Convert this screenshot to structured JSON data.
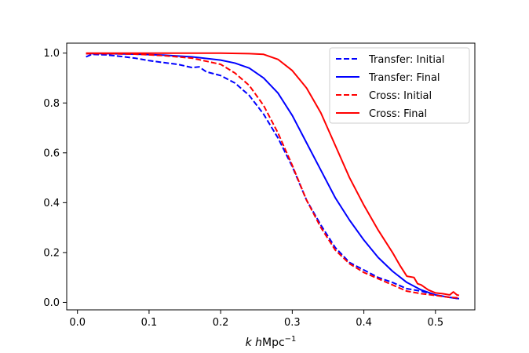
{
  "chart_data": {
    "type": "line",
    "title": "",
    "xlabel": "k hMpc",
    "xlabel_parts": {
      "k": "k",
      "h": "h",
      "unit": "Mpc",
      "exponent": "−1"
    },
    "ylabel": "",
    "xlim": [
      -0.015,
      0.555
    ],
    "ylim": [
      -0.03,
      1.04
    ],
    "xticks": [
      0.0,
      0.1,
      0.2,
      0.3,
      0.4,
      0.5
    ],
    "xtick_labels": [
      "0.0",
      "0.1",
      "0.2",
      "0.3",
      "0.4",
      "0.5"
    ],
    "yticks": [
      0.0,
      0.2,
      0.4,
      0.6,
      0.8,
      1.0
    ],
    "ytick_labels": [
      "0.0",
      "0.2",
      "0.4",
      "0.6",
      "0.8",
      "1.0"
    ],
    "grid": false,
    "legend_position": "upper-right",
    "series": [
      {
        "name": "Transfer: Initial",
        "color": "#0000ff",
        "dash": "dashed",
        "x": [
          0.012,
          0.02,
          0.04,
          0.06,
          0.08,
          0.1,
          0.12,
          0.14,
          0.16,
          0.17,
          0.18,
          0.2,
          0.22,
          0.24,
          0.26,
          0.28,
          0.3,
          0.32,
          0.34,
          0.36,
          0.38,
          0.4,
          0.42,
          0.44,
          0.46,
          0.48,
          0.5,
          0.52,
          0.533
        ],
        "y": [
          0.985,
          0.995,
          0.993,
          0.987,
          0.98,
          0.97,
          0.962,
          0.955,
          0.942,
          0.945,
          0.925,
          0.91,
          0.88,
          0.83,
          0.755,
          0.66,
          0.545,
          0.41,
          0.31,
          0.22,
          0.16,
          0.13,
          0.1,
          0.08,
          0.055,
          0.045,
          0.03,
          0.02,
          0.015
        ]
      },
      {
        "name": "Transfer: Final",
        "color": "#0000ff",
        "dash": "solid",
        "x": [
          0.012,
          0.04,
          0.08,
          0.12,
          0.16,
          0.2,
          0.22,
          0.24,
          0.26,
          0.28,
          0.3,
          0.32,
          0.34,
          0.36,
          0.38,
          0.4,
          0.42,
          0.44,
          0.46,
          0.48,
          0.5,
          0.52,
          0.533
        ],
        "y": [
          0.998,
          0.998,
          0.996,
          0.992,
          0.985,
          0.972,
          0.96,
          0.94,
          0.9,
          0.84,
          0.75,
          0.64,
          0.53,
          0.42,
          0.33,
          0.25,
          0.18,
          0.125,
          0.08,
          0.05,
          0.03,
          0.02,
          0.015
        ]
      },
      {
        "name": "Cross: Initial",
        "color": "#ff0000",
        "dash": "dashed",
        "x": [
          0.012,
          0.04,
          0.08,
          0.12,
          0.16,
          0.2,
          0.22,
          0.24,
          0.26,
          0.28,
          0.3,
          0.32,
          0.34,
          0.36,
          0.38,
          0.4,
          0.42,
          0.44,
          0.46,
          0.48,
          0.5,
          0.52,
          0.533
        ],
        "y": [
          0.998,
          0.998,
          0.996,
          0.99,
          0.98,
          0.955,
          0.92,
          0.87,
          0.79,
          0.68,
          0.55,
          0.41,
          0.3,
          0.21,
          0.155,
          0.12,
          0.095,
          0.07,
          0.045,
          0.035,
          0.028,
          0.02,
          0.018
        ]
      },
      {
        "name": "Cross: Final",
        "color": "#ff0000",
        "dash": "solid",
        "x": [
          0.012,
          0.05,
          0.1,
          0.15,
          0.2,
          0.24,
          0.26,
          0.28,
          0.3,
          0.32,
          0.34,
          0.36,
          0.38,
          0.4,
          0.42,
          0.44,
          0.45,
          0.46,
          0.47,
          0.475,
          0.48,
          0.49,
          0.5,
          0.51,
          0.52,
          0.525,
          0.53,
          0.533
        ],
        "y": [
          1.0,
          1.0,
          1.0,
          1.0,
          1.0,
          0.998,
          0.995,
          0.975,
          0.93,
          0.86,
          0.76,
          0.63,
          0.5,
          0.39,
          0.29,
          0.2,
          0.15,
          0.105,
          0.1,
          0.075,
          0.07,
          0.05,
          0.038,
          0.035,
          0.03,
          0.042,
          0.03,
          0.028
        ]
      }
    ]
  }
}
